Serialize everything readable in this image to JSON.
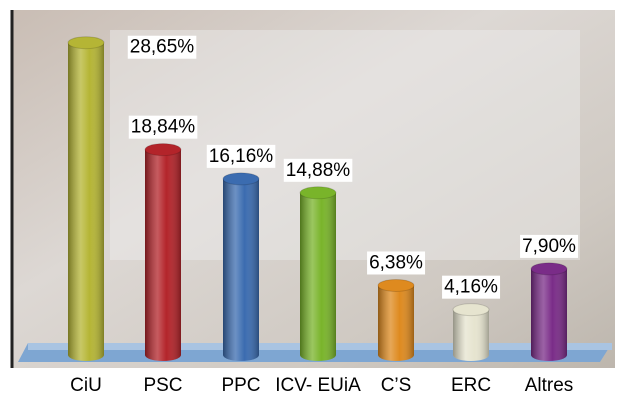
{
  "chart_data": {
    "type": "bar",
    "categories": [
      "CiU",
      "PSC",
      "PPC",
      "ICV- EUiA",
      "C’S",
      "ERC",
      "Altres"
    ],
    "values": [
      28.65,
      18.84,
      16.16,
      14.88,
      6.38,
      4.16,
      7.9
    ],
    "value_labels": [
      "28,65%",
      "18,84%",
      "16,16%",
      "14,88%",
      "6,38%",
      "4,16%",
      "7,90%"
    ],
    "colors": [
      "#b5b535",
      "#b3242a",
      "#3b6cb0",
      "#79b42a",
      "#de8a1f",
      "#e6e4cf",
      "#7a2c88"
    ]
  }
}
